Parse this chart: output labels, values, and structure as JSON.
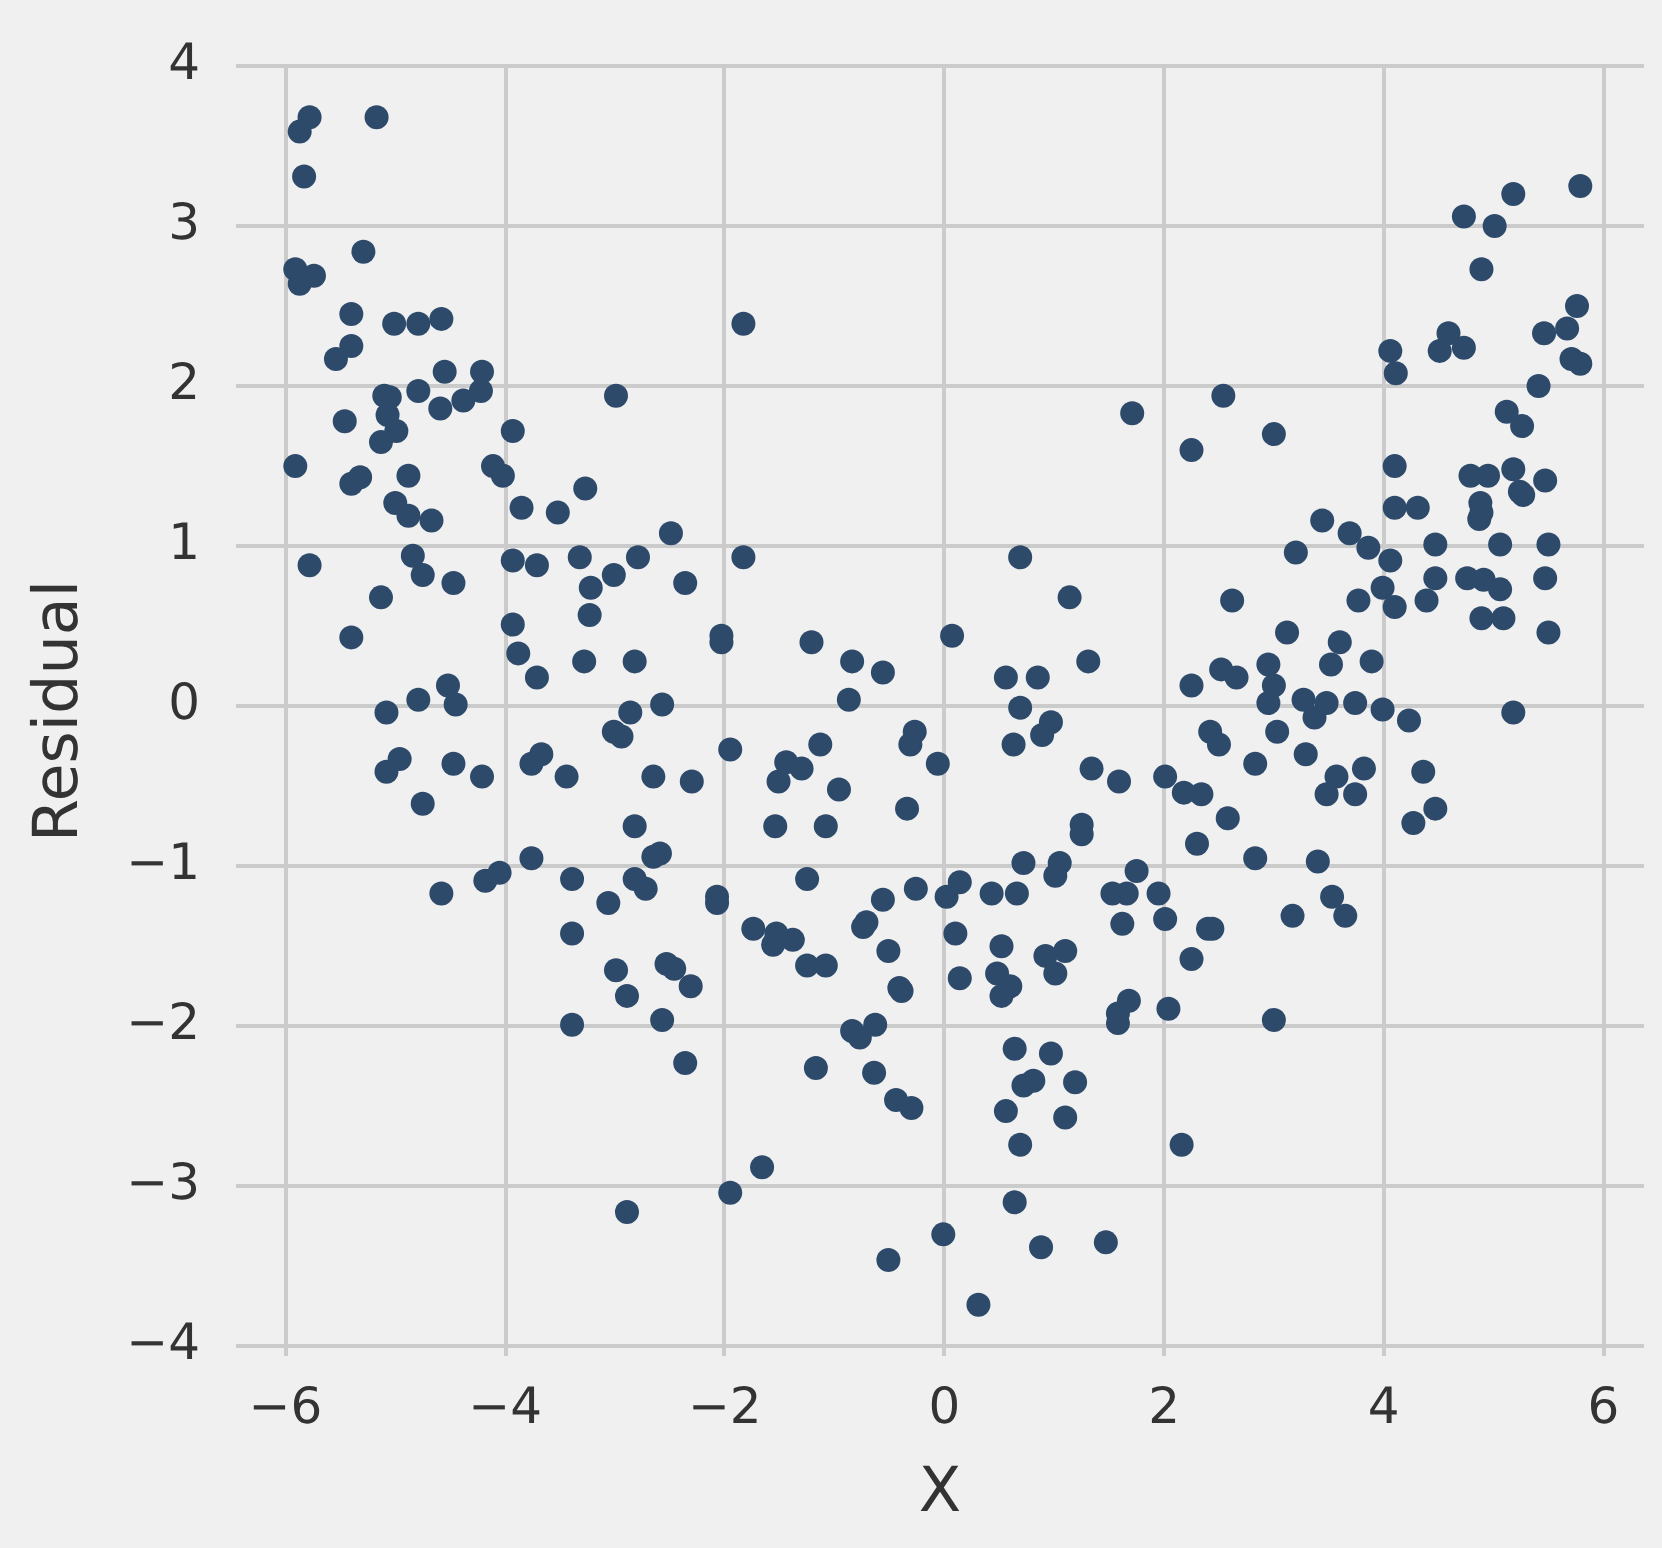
{
  "chart_data": {
    "type": "scatter",
    "xlabel": "X",
    "ylabel": "Residual",
    "x": [
      -5.78,
      -5.87,
      -5.17,
      -5.83,
      -5.29,
      -5.91,
      -5.87,
      -5.74,
      -5.4,
      -5.01,
      -4.79,
      -4.58,
      -5.4,
      -5.54,
      -4.55,
      -4.21,
      -5.1,
      -5.05,
      -4.79,
      -4.22,
      -4.38,
      -4.59,
      -2.99,
      -5.46,
      -5.07,
      -4.99,
      -5.13,
      -3.93,
      -5.91,
      -4.11,
      -4.02,
      -5.4,
      -5.32,
      -4.88,
      -5.0,
      -4.88,
      -4.67,
      -3.85,
      -3.52,
      -3.27,
      -2.49,
      -5.78,
      -4.84,
      -4.75,
      -4.47,
      -5.13,
      -3.93,
      -3.71,
      -3.32,
      -2.79,
      -3.01,
      -3.22,
      -2.36,
      -3.23,
      -3.93,
      -5.4,
      -3.88,
      -3.71,
      -3.28,
      -2.82,
      -4.52,
      -4.79,
      -4.45,
      -5.08,
      -2.86,
      -2.57,
      -1.83,
      1.71,
      -1.83,
      0.69,
      1.14,
      1.31,
      -2.03,
      -2.03,
      -1.21,
      -0.84,
      -0.56,
      -0.87,
      0.07,
      0.56,
      0.85,
      0.69,
      0.97,
      5.79,
      5.18,
      4.73,
      5.01,
      4.89,
      5.76,
      5.46,
      5.67,
      5.71,
      5.79,
      5.41,
      4.06,
      4.11,
      4.51,
      4.59,
      4.73,
      2.54,
      3.0,
      2.25,
      5.12,
      5.26,
      4.1,
      4.79,
      4.95,
      5.18,
      5.47,
      5.24,
      5.27,
      4.88,
      4.87,
      4.89,
      4.1,
      4.31,
      3.44,
      3.69,
      3.86,
      4.06,
      4.47,
      5.06,
      5.5,
      3.2,
      4.47,
      4.76,
      4.91,
      5.06,
      5.47,
      3.99,
      4.1,
      4.39,
      3.77,
      2.62,
      4.89,
      5.09,
      5.5,
      3.12,
      3.6,
      3.52,
      3.89,
      2.52,
      2.66,
      2.95,
      3.0,
      2.95,
      2.25,
      3.27,
      3.48,
      3.74,
      3.99,
      4.23,
      5.18,
      -5.08,
      -4.96,
      -4.47,
      -4.21,
      -4.75,
      -3.76,
      -3.67,
      -3.44,
      -3.01,
      -2.94,
      -2.65,
      -2.3,
      -2.82,
      -2.65,
      -2.59,
      -3.76,
      -4.18,
      -4.05,
      -4.58,
      -3.39,
      -3.06,
      -2.82,
      -2.72,
      -3.39,
      -2.99,
      -2.89,
      -2.53,
      -2.46,
      -2.31,
      -3.39,
      -2.57,
      -2.36,
      -2.89,
      0.89,
      0.63,
      -0.27,
      -0.31,
      -0.06,
      -1.95,
      -1.13,
      -1.44,
      -1.3,
      -1.51,
      -0.96,
      -1.54,
      -1.08,
      -0.34,
      1.34,
      1.59,
      2.01,
      1.25,
      1.25,
      0.72,
      1.05,
      1.01,
      1.75,
      -1.25,
      -2.07,
      -2.07,
      -1.74,
      -1.53,
      -1.38,
      -1.56,
      -1.25,
      -1.08,
      -0.71,
      -0.74,
      -0.56,
      -0.26,
      0.02,
      0.14,
      0.43,
      0.66,
      0.1,
      -0.51,
      0.52,
      0.14,
      0.48,
      0.6,
      0.52,
      -0.39,
      -0.41,
      0.92,
      1.1,
      1.01,
      1.53,
      1.66,
      1.62,
      1.95,
      2.01,
      1.68,
      1.58,
      1.58,
      2.04,
      -0.84,
      -0.63,
      -0.77,
      -1.17,
      -0.64,
      -0.44,
      -0.3,
      0.64,
      0.97,
      0.72,
      0.81,
      1.19,
      0.56,
      1.1,
      0.69,
      2.16,
      -1.66,
      -1.95,
      0.64,
      -0.01,
      0.88,
      1.47,
      -0.51,
      0.31,
      3.37,
      2.42,
      2.5,
      3.03,
      3.29,
      2.83,
      3.57,
      3.48,
      3.82,
      3.74,
      4.36,
      4.47,
      4.27,
      2.18,
      2.34,
      2.58,
      2.3,
      2.83,
      3.4,
      3.53,
      3.65,
      3.17,
      2.4,
      2.44,
      2.25,
      3.0
    ],
    "values": [
      3.68,
      3.59,
      3.68,
      3.31,
      2.84,
      2.73,
      2.64,
      2.69,
      2.45,
      2.39,
      2.39,
      2.42,
      2.25,
      2.17,
      2.09,
      2.09,
      1.94,
      1.93,
      1.97,
      1.97,
      1.91,
      1.86,
      1.94,
      1.78,
      1.82,
      1.72,
      1.65,
      1.72,
      1.5,
      1.5,
      1.44,
      1.39,
      1.43,
      1.44,
      1.27,
      1.19,
      1.16,
      1.24,
      1.21,
      1.36,
      1.08,
      0.88,
      0.94,
      0.82,
      0.77,
      0.68,
      0.91,
      0.88,
      0.93,
      0.93,
      0.82,
      0.74,
      0.77,
      0.57,
      0.51,
      0.43,
      0.33,
      0.18,
      0.28,
      0.28,
      0.13,
      0.04,
      0.01,
      -0.04,
      -0.04,
      0.01,
      2.39,
      1.83,
      0.93,
      0.93,
      0.68,
      0.28,
      0.44,
      0.4,
      0.4,
      0.28,
      0.21,
      0.04,
      0.44,
      0.18,
      0.18,
      -0.01,
      -0.1,
      3.25,
      3.2,
      3.06,
      3.0,
      2.73,
      2.5,
      2.33,
      2.36,
      2.17,
      2.14,
      2.0,
      2.22,
      2.08,
      2.22,
      2.33,
      2.24,
      1.94,
      1.7,
      1.6,
      1.84,
      1.75,
      1.5,
      1.44,
      1.44,
      1.48,
      1.41,
      1.34,
      1.32,
      1.27,
      1.17,
      1.21,
      1.24,
      1.24,
      1.16,
      1.08,
      0.99,
      0.91,
      1.01,
      1.01,
      1.01,
      0.96,
      0.8,
      0.8,
      0.79,
      0.73,
      0.8,
      0.74,
      0.62,
      0.66,
      0.66,
      0.66,
      0.55,
      0.55,
      0.46,
      0.46,
      0.4,
      0.26,
      0.28,
      0.23,
      0.18,
      0.26,
      0.13,
      0.02,
      0.13,
      0.04,
      0.02,
      0.02,
      -0.02,
      -0.09,
      -0.04,
      -0.41,
      -0.33,
      -0.36,
      -0.44,
      -0.61,
      -0.36,
      -0.3,
      -0.44,
      -0.16,
      -0.19,
      -0.44,
      -0.47,
      -0.75,
      -0.94,
      -0.92,
      -0.95,
      -1.09,
      -1.04,
      -1.17,
      -1.08,
      -1.23,
      -1.08,
      -1.14,
      -1.42,
      -1.65,
      -1.81,
      -1.61,
      -1.64,
      -1.75,
      -1.99,
      -1.96,
      -2.23,
      -3.16,
      -0.18,
      -0.24,
      -0.16,
      -0.24,
      -0.36,
      -0.27,
      -0.24,
      -0.35,
      -0.39,
      -0.47,
      -0.52,
      -0.75,
      -0.75,
      -0.64,
      -0.39,
      -0.47,
      -0.44,
      -0.74,
      -0.8,
      -0.98,
      -0.98,
      -1.06,
      -1.03,
      -1.08,
      -1.19,
      -1.23,
      -1.39,
      -1.42,
      -1.46,
      -1.49,
      -1.62,
      -1.62,
      -1.35,
      -1.38,
      -1.21,
      -1.14,
      -1.19,
      -1.1,
      -1.17,
      -1.17,
      -1.42,
      -1.53,
      -1.5,
      -1.7,
      -1.67,
      -1.75,
      -1.81,
      -1.78,
      -1.76,
      -1.56,
      -1.53,
      -1.67,
      -1.17,
      -1.17,
      -1.36,
      -1.17,
      -1.33,
      -1.84,
      -1.92,
      -1.98,
      -1.89,
      -2.03,
      -1.99,
      -2.07,
      -2.26,
      -2.29,
      -2.46,
      -2.51,
      -2.14,
      -2.17,
      -2.37,
      -2.34,
      -2.35,
      -2.53,
      -2.57,
      -2.74,
      -2.74,
      -2.88,
      -3.04,
      -3.1,
      -3.3,
      -3.38,
      -3.35,
      -3.46,
      -3.74,
      -0.07,
      -0.16,
      -0.24,
      -0.16,
      -0.3,
      -0.36,
      -0.44,
      -0.55,
      -0.39,
      -0.55,
      -0.41,
      -0.64,
      -0.73,
      -0.54,
      -0.55,
      -0.7,
      -0.86,
      -0.95,
      -0.97,
      -1.19,
      -1.31,
      -1.31,
      -1.39,
      -1.39,
      -1.58,
      -1.96
    ],
    "color": "#2e4a6b",
    "marker": "circle",
    "grid": true,
    "xlim": [
      -6.45,
      6.37
    ],
    "ylim": [
      -4.06,
      4.0
    ],
    "xticks": [
      {
        "value": -6,
        "label": "−6"
      },
      {
        "value": -4,
        "label": "−4"
      },
      {
        "value": -2,
        "label": "−2"
      },
      0,
      2,
      4,
      6
    ],
    "yticks": [
      {
        "value": -4,
        "label": "−4"
      },
      {
        "value": -3,
        "label": "−3"
      },
      {
        "value": -2,
        "label": "−2"
      },
      {
        "value": -1,
        "label": "−1"
      },
      0,
      1,
      2,
      3,
      4
    ]
  }
}
